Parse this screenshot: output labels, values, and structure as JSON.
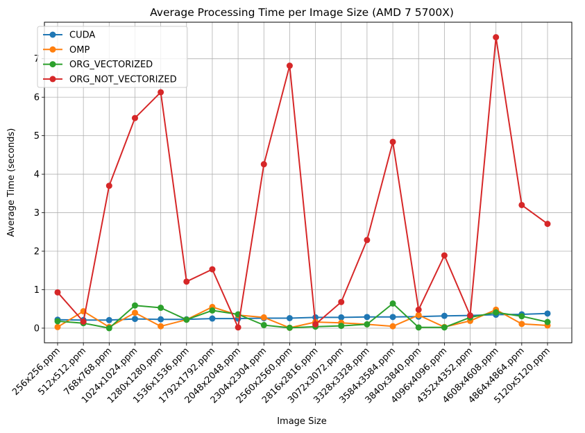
{
  "chart_data": {
    "type": "line",
    "title": "Average Processing Time per Image Size (AMD 7 5700X)",
    "xlabel": "Image Size",
    "ylabel": "Average Time (seconds)",
    "ylim": [
      -0.38,
      7.95
    ],
    "yticks": [
      0,
      1,
      2,
      3,
      4,
      5,
      6,
      7
    ],
    "grid": true,
    "legend_position": "top-left",
    "categories": [
      "256x256.ppm",
      "512x512.ppm",
      "768x768.ppm",
      "1024x1024.ppm",
      "1280x1280.ppm",
      "1536x1536.ppm",
      "1792x1792.ppm",
      "2048x2048.ppm",
      "2304x2304.ppm",
      "2560x2560.ppm",
      "2816x2816.ppm",
      "3072x3072.ppm",
      "3328x3328.ppm",
      "3584x3584.ppm",
      "3840x3840.ppm",
      "4096x4096.ppm",
      "4352x4352.ppm",
      "4608x4608.ppm",
      "4864x4864.ppm",
      "5120x5120.ppm"
    ],
    "series": [
      {
        "name": "CUDA",
        "color": "#1f77b4",
        "values": [
          0.22,
          0.21,
          0.21,
          0.24,
          0.23,
          0.23,
          0.25,
          0.25,
          0.26,
          0.26,
          0.28,
          0.28,
          0.29,
          0.29,
          0.3,
          0.32,
          0.33,
          0.35,
          0.36,
          0.38
        ]
      },
      {
        "name": "OMP",
        "color": "#ff7f0e",
        "values": [
          0.03,
          0.44,
          0.03,
          0.4,
          0.05,
          0.22,
          0.55,
          0.34,
          0.28,
          0.01,
          0.16,
          0.14,
          0.1,
          0.05,
          0.34,
          0.03,
          0.19,
          0.48,
          0.11,
          0.07
        ]
      },
      {
        "name": "ORG_VECTORIZED",
        "color": "#2ca02c",
        "values": [
          0.18,
          0.13,
          0.0,
          0.59,
          0.53,
          0.22,
          0.46,
          0.36,
          0.08,
          0.01,
          0.04,
          0.06,
          0.1,
          0.64,
          0.02,
          0.02,
          0.28,
          0.41,
          0.31,
          0.16
        ]
      },
      {
        "name": "ORG_NOT_VECTORIZED",
        "color": "#d62728",
        "values": [
          0.93,
          0.17,
          3.7,
          5.46,
          6.13,
          1.21,
          1.53,
          0.02,
          4.26,
          6.82,
          0.1,
          0.68,
          2.29,
          4.84,
          0.48,
          1.89,
          0.33,
          7.56,
          3.2,
          2.71
        ]
      }
    ]
  }
}
